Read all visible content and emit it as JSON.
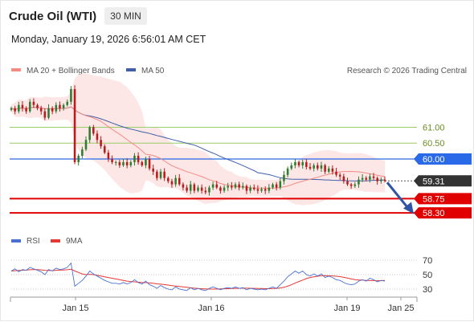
{
  "header": {
    "title": "Crude Oil (WTI)",
    "timeframe": "30 MIN",
    "datetime": "Monday, January 19, 2026 6:56:01 AM CET"
  },
  "legend": {
    "ma20": "MA 20 + Bollinger Bands",
    "ma50": "MA 50",
    "rsi": "RSI",
    "rsi_ma": "9MA",
    "credit": "Research © 2026 Trading Central"
  },
  "colors": {
    "up": "#2e7d32",
    "down": "#b71c1c",
    "ma20": "#f28b82",
    "bollinger_fill": "#fde2e2",
    "ma50": "#3f5fa8",
    "resistance_line": "#9ccc65",
    "pivot": "#2a6ae8",
    "support": "#e00000",
    "last_price": "#333333",
    "rsi": "#4a70d0",
    "rsi_ma": "#e53935"
  },
  "chart_data": {
    "type": "candlestick",
    "price_axis": {
      "min": 57.9,
      "max": 62.2
    },
    "levels": [
      {
        "label": "61.00",
        "value": 61.0,
        "kind": "resistance"
      },
      {
        "label": "60.50",
        "value": 60.5,
        "kind": "resistance"
      },
      {
        "label": "60.00",
        "value": 60.0,
        "kind": "pivot"
      },
      {
        "label": "59.31",
        "value": 59.31,
        "kind": "last"
      },
      {
        "label": "58.75",
        "value": 58.75,
        "kind": "support"
      },
      {
        "label": "58.30",
        "value": 58.3,
        "kind": "support"
      }
    ],
    "x_labels": [
      "Jan 15",
      "Jan 16",
      "Jan 19",
      "Jan 25"
    ],
    "rsi_axis": {
      "ticks": [
        "70",
        "50",
        "30"
      ],
      "min": 20,
      "max": 80
    },
    "closes": [
      61.6,
      61.5,
      61.7,
      61.6,
      61.5,
      61.8,
      61.7,
      61.6,
      61.5,
      61.3,
      61.6,
      61.5,
      61.7,
      61.6,
      61.7,
      61.8,
      62.2,
      59.9,
      60.1,
      60.3,
      60.6,
      61.0,
      60.8,
      60.6,
      60.4,
      60.2,
      60.0,
      59.9,
      59.9,
      59.8,
      59.9,
      59.8,
      59.9,
      60.1,
      59.9,
      59.8,
      60.0,
      59.7,
      59.6,
      59.4,
      59.6,
      59.4,
      59.3,
      59.2,
      59.4,
      59.2,
      59.1,
      59.0,
      59.2,
      59.0,
      59.1,
      59.0,
      58.95,
      59.1,
      59.2,
      59.1,
      59.0,
      59.1,
      59.15,
      59.1,
      59.2,
      59.1,
      59.15,
      59.0,
      59.1,
      59.05,
      59.0,
      59.05,
      59.0,
      59.1,
      59.2,
      59.1,
      59.3,
      59.5,
      59.7,
      59.8,
      59.9,
      59.8,
      59.9,
      59.75,
      59.7,
      59.8,
      59.7,
      59.8,
      59.6,
      59.7,
      59.6,
      59.5,
      59.45,
      59.3,
      59.2,
      59.15,
      59.2,
      59.35,
      59.4,
      59.35,
      59.45,
      59.4,
      59.3,
      59.35,
      59.31
    ],
    "rsi": [
      55,
      58,
      54,
      57,
      56,
      60,
      58,
      56,
      54,
      50,
      57,
      55,
      59,
      57,
      58,
      60,
      66,
      34,
      38,
      42,
      48,
      55,
      51,
      48,
      45,
      42,
      40,
      38,
      38,
      37,
      39,
      37,
      39,
      43,
      39,
      37,
      41,
      36,
      34,
      31,
      35,
      32,
      30,
      29,
      33,
      30,
      29,
      28,
      32,
      29,
      31,
      29,
      28,
      31,
      33,
      31,
      29,
      31,
      32,
      31,
      33,
      31,
      32,
      29,
      31,
      30,
      29,
      30,
      29,
      31,
      33,
      31,
      36,
      41,
      47,
      51,
      55,
      52,
      55,
      50,
      48,
      51,
      48,
      51,
      46,
      48,
      46,
      43,
      42,
      39,
      37,
      36,
      37,
      41,
      43,
      41,
      45,
      43,
      40,
      42,
      41
    ],
    "rsi_ma": [
      55,
      55.5,
      55.8,
      56,
      56.2,
      56.8,
      57,
      57,
      56.5,
      56,
      55.8,
      55.6,
      56,
      56.2,
      56.4,
      56.8,
      57.5,
      55,
      53,
      51,
      50,
      50.5,
      50,
      49,
      48,
      47,
      46,
      45,
      44,
      43,
      42,
      41,
      40.5,
      40,
      39.5,
      39,
      39,
      38.5,
      38,
      37.2,
      36.8,
      36.2,
      35.6,
      34.8,
      34.2,
      33.6,
      33,
      32.4,
      31.8,
      31.2,
      30.8,
      30.5,
      30.2,
      30,
      30,
      30,
      30.2,
      30.4,
      30.6,
      30.8,
      31,
      31.1,
      31.2,
      31.2,
      31.1,
      31,
      30.9,
      30.8,
      30.6,
      30.6,
      30.8,
      31,
      31.5,
      32.5,
      34,
      36,
      38.5,
      40.5,
      42.5,
      44.5,
      46,
      47,
      47.8,
      48.5,
      48.6,
      48.5,
      48.2,
      47.8,
      47.2,
      46.2,
      45.2,
      44,
      43,
      42.5,
      42.4,
      42,
      41.8,
      41.8,
      41.6,
      41.8,
      42
    ]
  }
}
